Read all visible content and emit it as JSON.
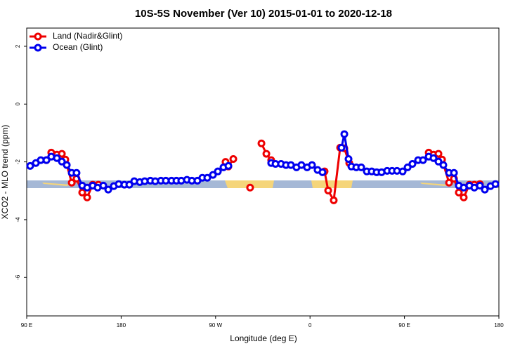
{
  "chart_data": {
    "type": "line",
    "title": "10S-5S November (Ver 10)   2015-01-01 to 2020-12-18",
    "x_label": "Longitude (deg E)",
    "y_label": "XCO2 - MLO trend (ppm)",
    "xlim": [
      90,
      540
    ],
    "ylim": [
      -7.33,
      2.63
    ],
    "xticks": [
      {
        "value": 90,
        "label": "90 E"
      },
      180,
      {
        "value": 270,
        "label": "90 W"
      },
      {
        "value": 360,
        "label": "0"
      },
      {
        "value": 450,
        "label": "90 E"
      },
      {
        "value": 540,
        "label": "180"
      }
    ],
    "yticks": [
      -6,
      -4,
      -2,
      0,
      2
    ],
    "legend": "top-left",
    "series": [
      {
        "name": "Land (Nadir&Glint)",
        "color": "#ee0000",
        "x": [
          108.8,
          113.4,
          118.8,
          123.5,
          126.8,
          132.9,
          137.5,
          142.9,
          147.6,
          152.9,
          158.3,
          270,
          279.5,
          282.2,
          286.9,
          295,
          302.9,
          308,
          313.7,
          318.4,
          323.0,
          350,
          373.9,
          377.3,
          382.6,
          388.7,
          392.7,
          397.4,
          430,
          473.1,
          477.7,
          482.4,
          485.8,
          492.5,
          497.2,
          501.8,
          506.5,
          511.9,
          516.6,
          521.9
        ],
        "values": [
          -1.94,
          -1.68,
          -1.75,
          -1.72,
          -1.92,
          -2.72,
          -2.58,
          -3.06,
          -3.23,
          -2.79,
          -2.79,
          null,
          -2.0,
          -2.16,
          -1.9,
          null,
          -2.89,
          null,
          -1.36,
          -1.72,
          -1.94,
          null,
          -2.33,
          -2.99,
          -3.33,
          -1.51,
          -1.53,
          -2.04,
          null,
          -1.68,
          -1.75,
          -1.72,
          -1.92,
          -2.72,
          -2.58,
          -3.06,
          -3.23,
          -2.79,
          -2.79,
          -2.77
        ]
      },
      {
        "name": "Ocean (Glint)",
        "color": "#0000ee",
        "x": [
          93.3,
          98.7,
          103.4,
          108.8,
          113.4,
          118.8,
          123.5,
          128.2,
          132.9,
          137.5,
          142.9,
          147.6,
          152.9,
          157.6,
          163.0,
          167.7,
          173.0,
          177.7,
          183.1,
          187.8,
          192.5,
          197.8,
          202.5,
          207.9,
          212.5,
          217.9,
          222.6,
          228.0,
          232.7,
          237.3,
          242.7,
          247.4,
          252.7,
          257.4,
          262.1,
          267.5,
          272.2,
          277.5,
          282.2,
          300,
          323.0,
          327.1,
          332.4,
          337.1,
          341.8,
          347.1,
          351.8,
          357.2,
          361.9,
          367.2,
          371.9,
          380,
          390.0,
          392.7,
          396.7,
          399.4,
          404.1,
          408.8,
          414.1,
          418.8,
          423.5,
          428.2,
          433.5,
          438.2,
          442.9,
          448.3,
          453.0,
          457.6,
          463.0,
          467.7,
          473.1,
          477.7,
          482.4,
          487.1,
          492.5,
          497.2,
          501.8,
          506.5,
          511.9,
          516.6,
          521.9,
          526.6,
          532.0,
          536.7
        ],
        "values": [
          -2.14,
          -2.04,
          -1.94,
          -1.94,
          -1.82,
          -1.87,
          -1.99,
          -2.11,
          -2.38,
          -2.38,
          -2.82,
          -2.89,
          -2.82,
          -2.89,
          -2.82,
          -2.96,
          -2.84,
          -2.77,
          -2.79,
          -2.79,
          -2.67,
          -2.7,
          -2.67,
          -2.65,
          -2.67,
          -2.65,
          -2.65,
          -2.65,
          -2.65,
          -2.65,
          -2.62,
          -2.65,
          -2.65,
          -2.55,
          -2.55,
          -2.45,
          -2.33,
          -2.19,
          -2.14,
          null,
          -2.04,
          -2.07,
          -2.07,
          -2.11,
          -2.11,
          -2.19,
          -2.11,
          -2.19,
          -2.11,
          -2.28,
          -2.36,
          null,
          -1.51,
          -1.04,
          -1.9,
          -2.16,
          -2.19,
          -2.19,
          -2.33,
          -2.33,
          -2.36,
          -2.36,
          -2.31,
          -2.31,
          -2.31,
          -2.33,
          -2.19,
          -2.07,
          -1.94,
          -1.94,
          -1.82,
          -1.87,
          -1.99,
          -2.11,
          -2.38,
          -2.38,
          -2.82,
          -2.89,
          -2.82,
          -2.89,
          -2.82,
          -2.96,
          -2.84,
          -2.77
        ]
      }
    ]
  }
}
